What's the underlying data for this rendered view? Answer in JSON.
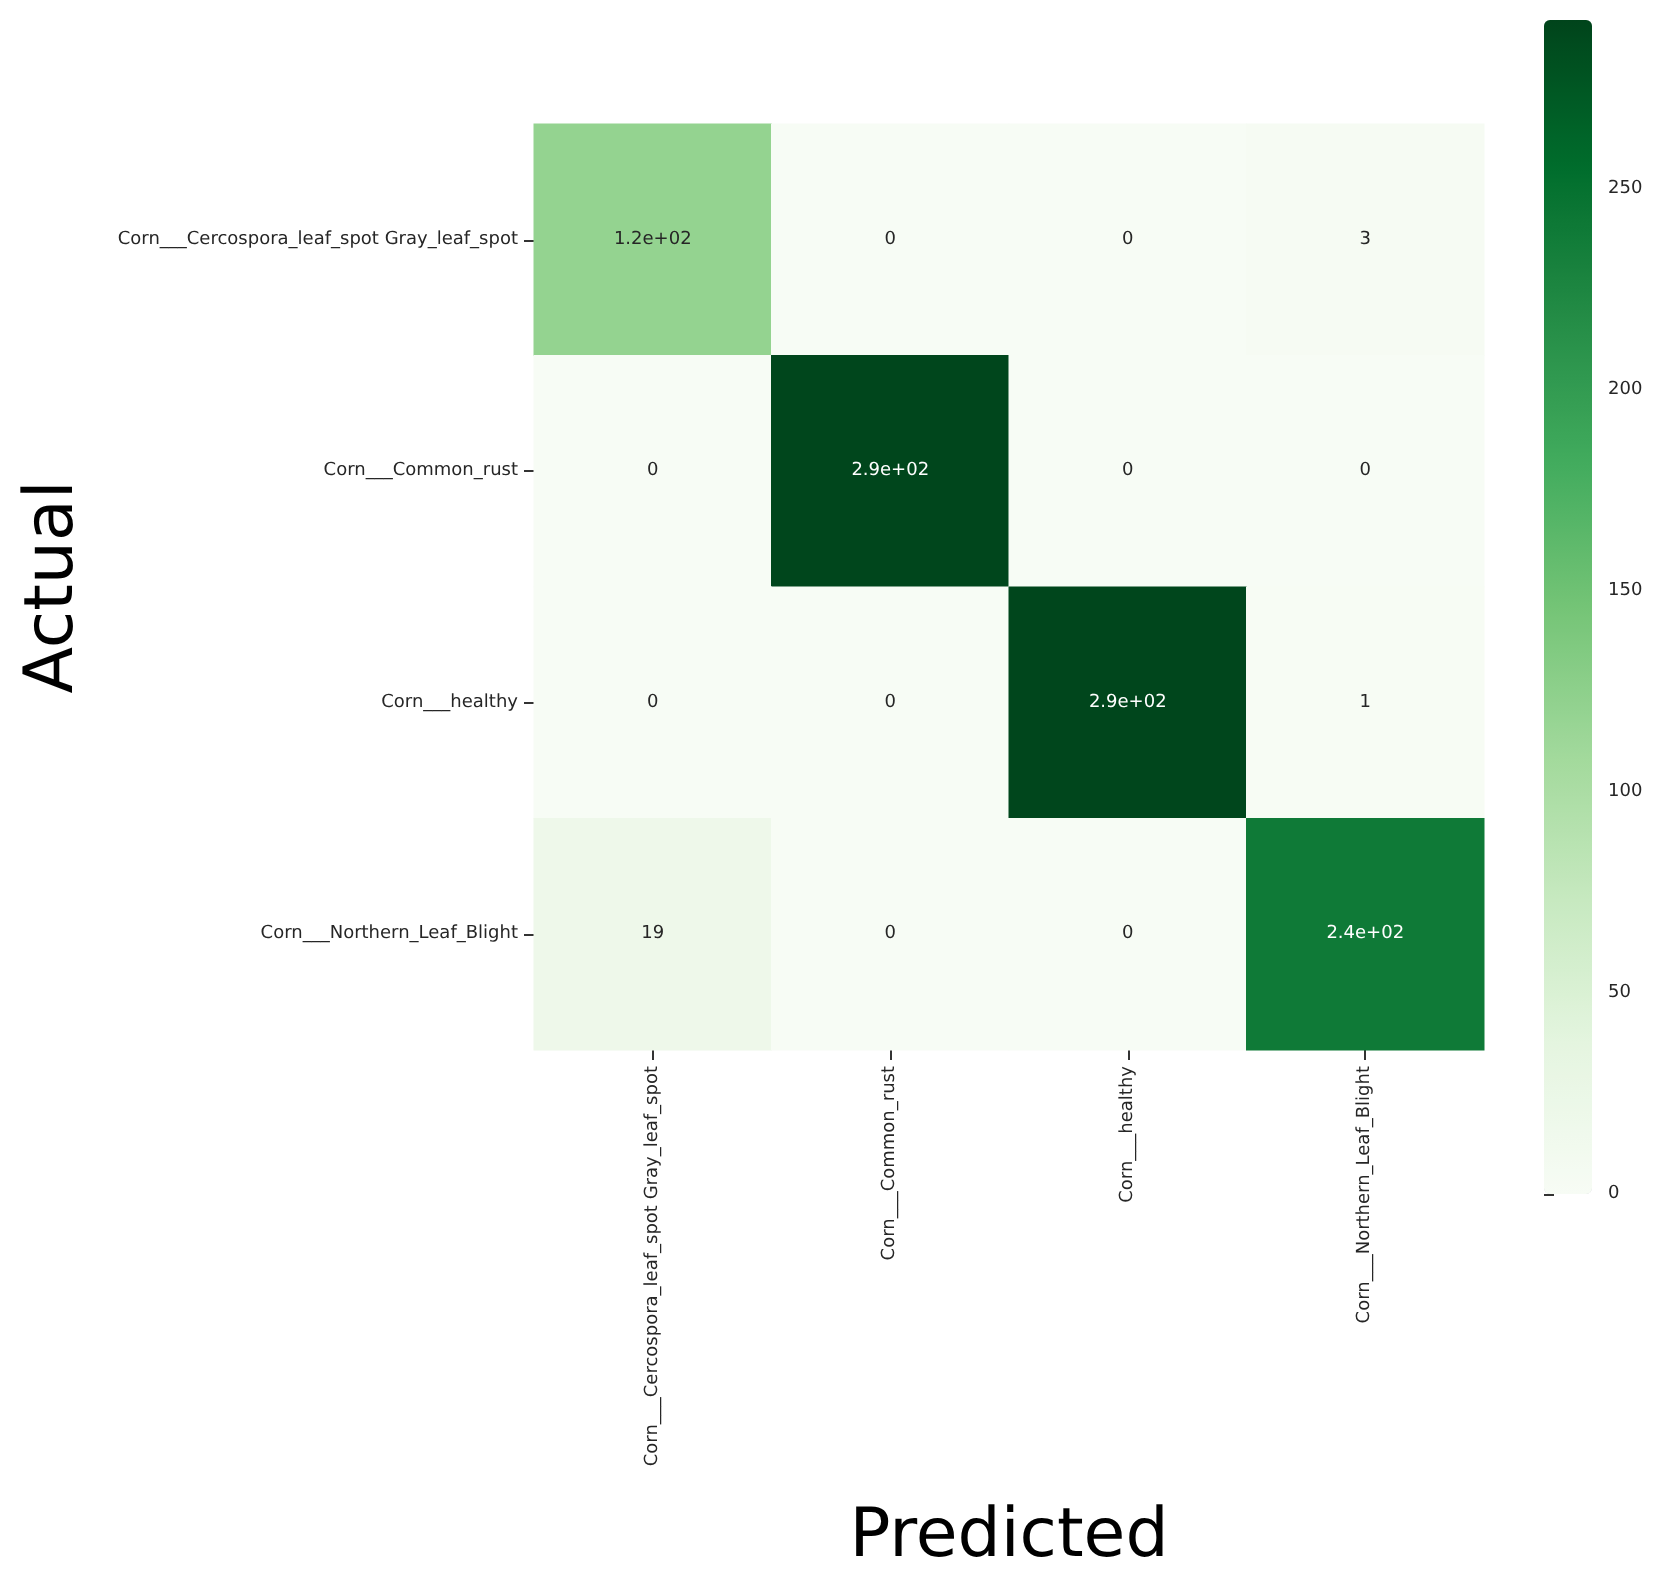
{
  "chart_data": {
    "type": "heatmap",
    "xlabel": "Predicted",
    "ylabel": "Actual",
    "categories": [
      "Corn___Cercospora_leaf_spot Gray_leaf_spot",
      "Corn___Common_rust",
      "Corn___healthy",
      "Corn___Northern_Leaf_Blight"
    ],
    "y_categories": [
      "Corn___Cercospora_leaf_spot Gray_leaf_spot",
      "Corn___Common_rust",
      "Corn___healthy",
      "Corn___Northern_Leaf_Blight"
    ],
    "cells": [
      [
        120,
        0,
        0,
        3
      ],
      [
        0,
        290,
        0,
        0
      ],
      [
        0,
        0,
        290,
        1
      ],
      [
        19,
        0,
        0,
        240
      ]
    ],
    "cell_labels": [
      [
        "1.2e+02",
        "0",
        "0",
        "3"
      ],
      [
        "0",
        "2.9e+02",
        "0",
        "0"
      ],
      [
        "0",
        "0",
        "2.9e+02",
        "1"
      ],
      [
        "19",
        "0",
        "0",
        "2.4e+02"
      ]
    ],
    "clim": [
      0,
      292
    ],
    "cticks": [
      0,
      50,
      100,
      150,
      200,
      250
    ]
  }
}
